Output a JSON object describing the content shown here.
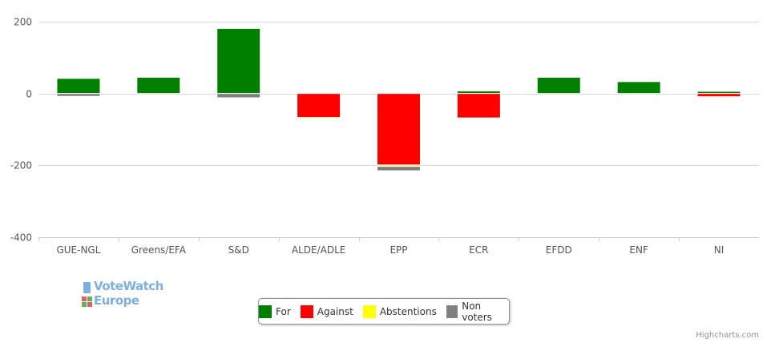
{
  "chart_data": {
    "type": "bar",
    "stacked": true,
    "categories": [
      "GUE-NGL",
      "Greens/EFA",
      "S&D",
      "ALDE/ADLE",
      "EPP",
      "ECR",
      "EFDD",
      "ENF",
      "NI"
    ],
    "yTicks": [
      200,
      0,
      -200,
      -400
    ],
    "ylim": [
      -400,
      200
    ],
    "grid": true,
    "legend_placement": "bottom-center",
    "series": [
      {
        "name": "For",
        "color": "#008000",
        "values": [
          42,
          45,
          181,
          0,
          0,
          7,
          45,
          33,
          6
        ]
      },
      {
        "name": "Against",
        "color": "#ff0000",
        "values": [
          0,
          0,
          0,
          -67,
          -199,
          -68,
          0,
          0,
          -9
        ]
      },
      {
        "name": "Abstentions",
        "color": "#ffff00",
        "values": [
          0,
          0,
          0,
          -3,
          -4,
          0,
          0,
          0,
          0
        ]
      },
      {
        "name": "Non voters",
        "color": "#808080",
        "values": [
          -8,
          0,
          -12,
          0,
          -12,
          0,
          0,
          0,
          0
        ]
      }
    ]
  },
  "logo": {
    "line1": "VoteWatch",
    "line2": "Europe"
  },
  "credits": "Highcharts.com"
}
